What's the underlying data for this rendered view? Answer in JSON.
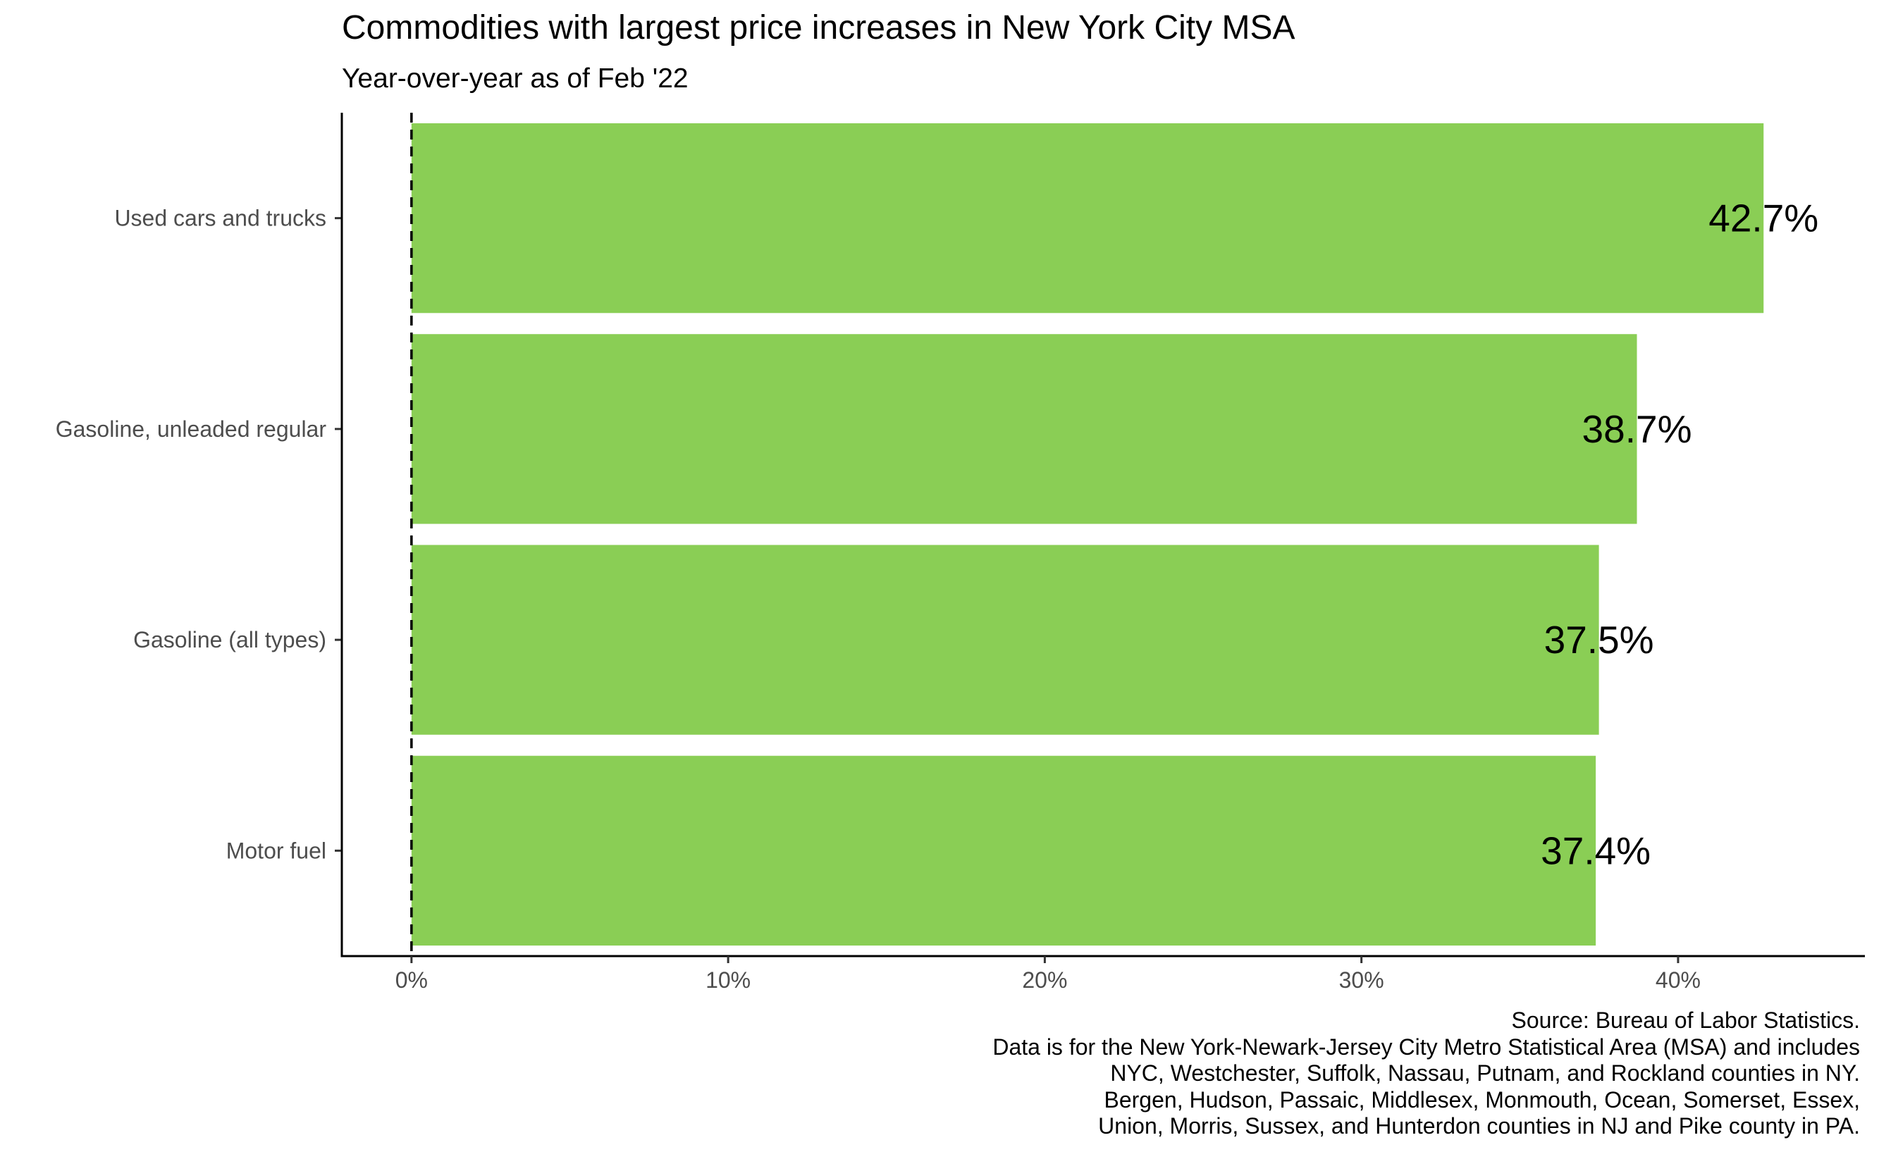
{
  "chart_data": {
    "type": "bar",
    "orientation": "horizontal",
    "title": "Commodities with largest price increases in New York City MSA",
    "subtitle": "Year-over-year as of Feb '22",
    "categories": [
      "Used cars and trucks",
      "Gasoline, unleaded regular",
      "Gasoline (all types)",
      "Motor fuel"
    ],
    "values": [
      42.7,
      38.7,
      37.5,
      37.4
    ],
    "value_labels": [
      "42.7%",
      "38.7%",
      "37.5%",
      "37.4%"
    ],
    "x_ticks": [
      0,
      10,
      20,
      30,
      40
    ],
    "x_tick_labels": [
      "0%",
      "10%",
      "20%",
      "30%",
      "40%"
    ],
    "xlim": [
      -2.2,
      45.9
    ],
    "xlabel": "",
    "ylabel": "",
    "grid": false,
    "reference_line": {
      "x": 0,
      "style": "dashed"
    },
    "bar_color": "#8ACE55",
    "caption": [
      "Source: Bureau of Labor Statistics.",
      "Data is for the New York-Newark-Jersey City Metro Statistical Area (MSA) and includes",
      "NYC, Westchester, Suffolk, Nassau, Putnam, and Rockland counties in NY.",
      "Bergen, Hudson, Passaic, Middlesex, Monmouth, Ocean, Somerset, Essex,",
      "Union, Morris, Sussex, and Hunterdon counties in NJ and Pike county in PA."
    ]
  }
}
